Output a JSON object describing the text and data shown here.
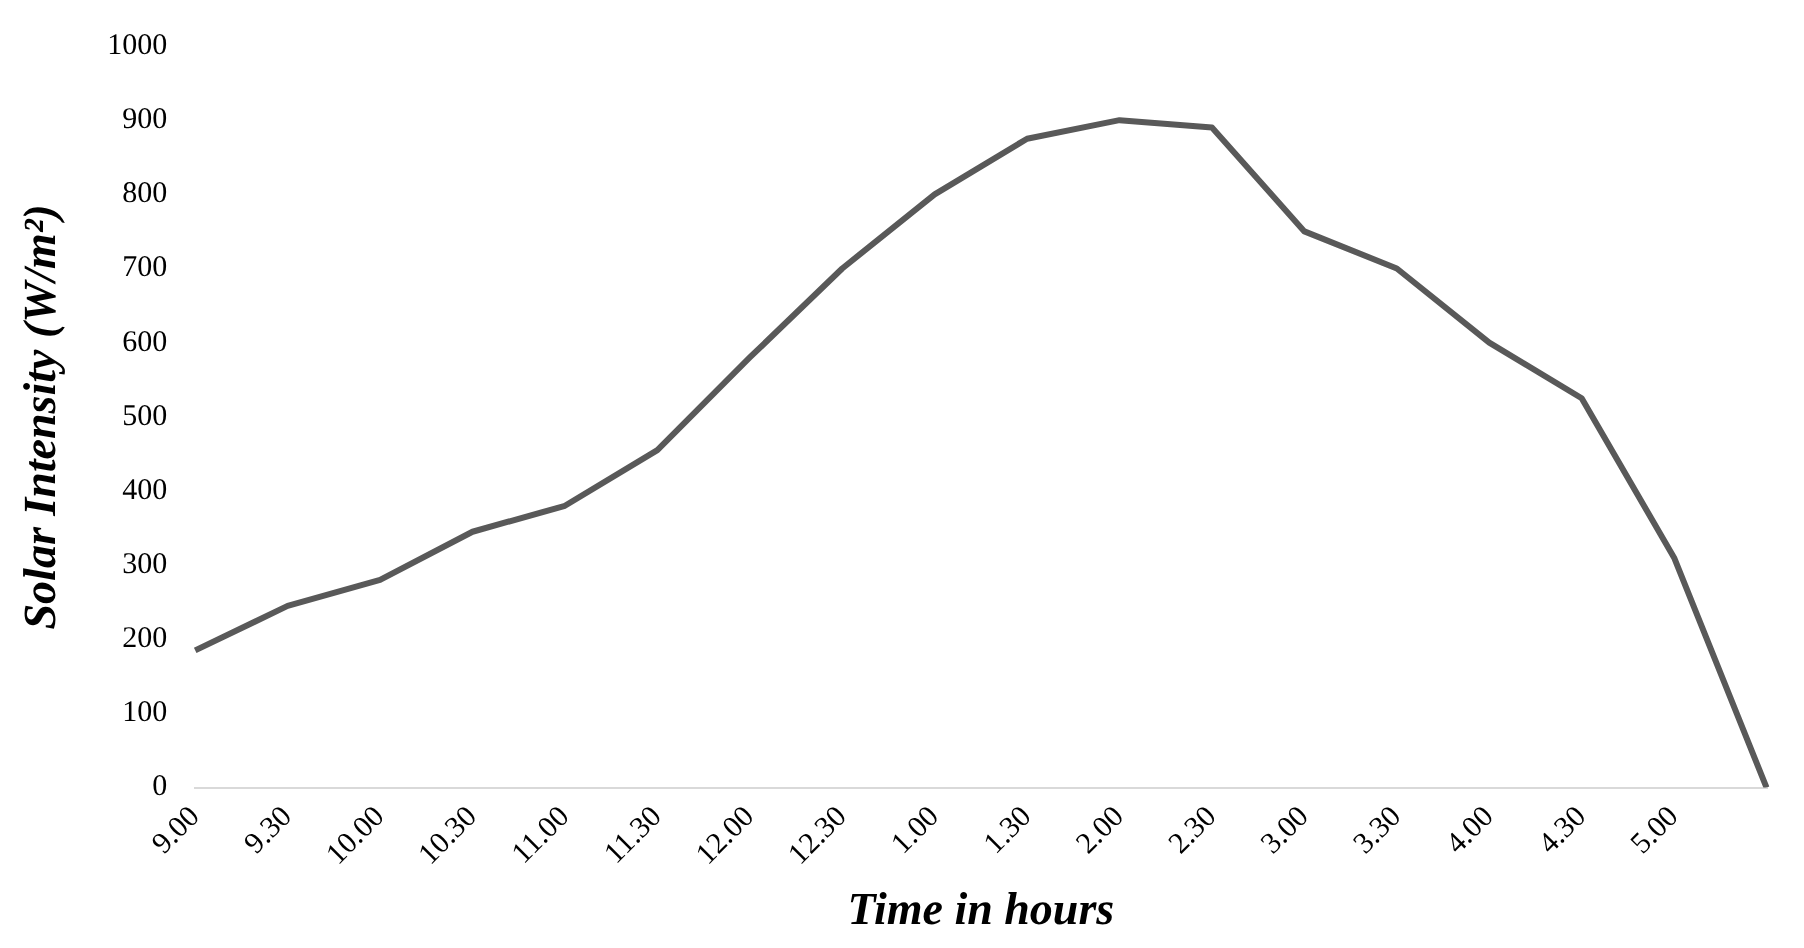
{
  "chart_data": {
    "type": "line",
    "xlabel": "Time in hours",
    "ylabel": "Solar Intensity (W/m²)",
    "categories": [
      "9.00",
      "9.30",
      "10.00",
      "10.30",
      "11.00",
      "11.30",
      "12.00",
      "12.30",
      "1.00",
      "1.30",
      "2.00",
      "2.30",
      "3.00",
      "3.30",
      "4.00",
      "4.30",
      "5.00",
      null
    ],
    "series": [
      {
        "color": "#595959",
        "values": [
          185,
          245,
          280,
          345,
          380,
          455,
          580,
          700,
          800,
          875,
          900,
          890,
          750,
          700,
          600,
          525,
          310,
          0
        ]
      }
    ],
    "ylim": [
      0,
      1000
    ],
    "yticks": [
      0,
      100,
      200,
      300,
      400,
      500,
      600,
      700,
      800,
      900,
      1000
    ],
    "grid": false,
    "legend": false,
    "marker": "none",
    "line_style": "solid"
  }
}
